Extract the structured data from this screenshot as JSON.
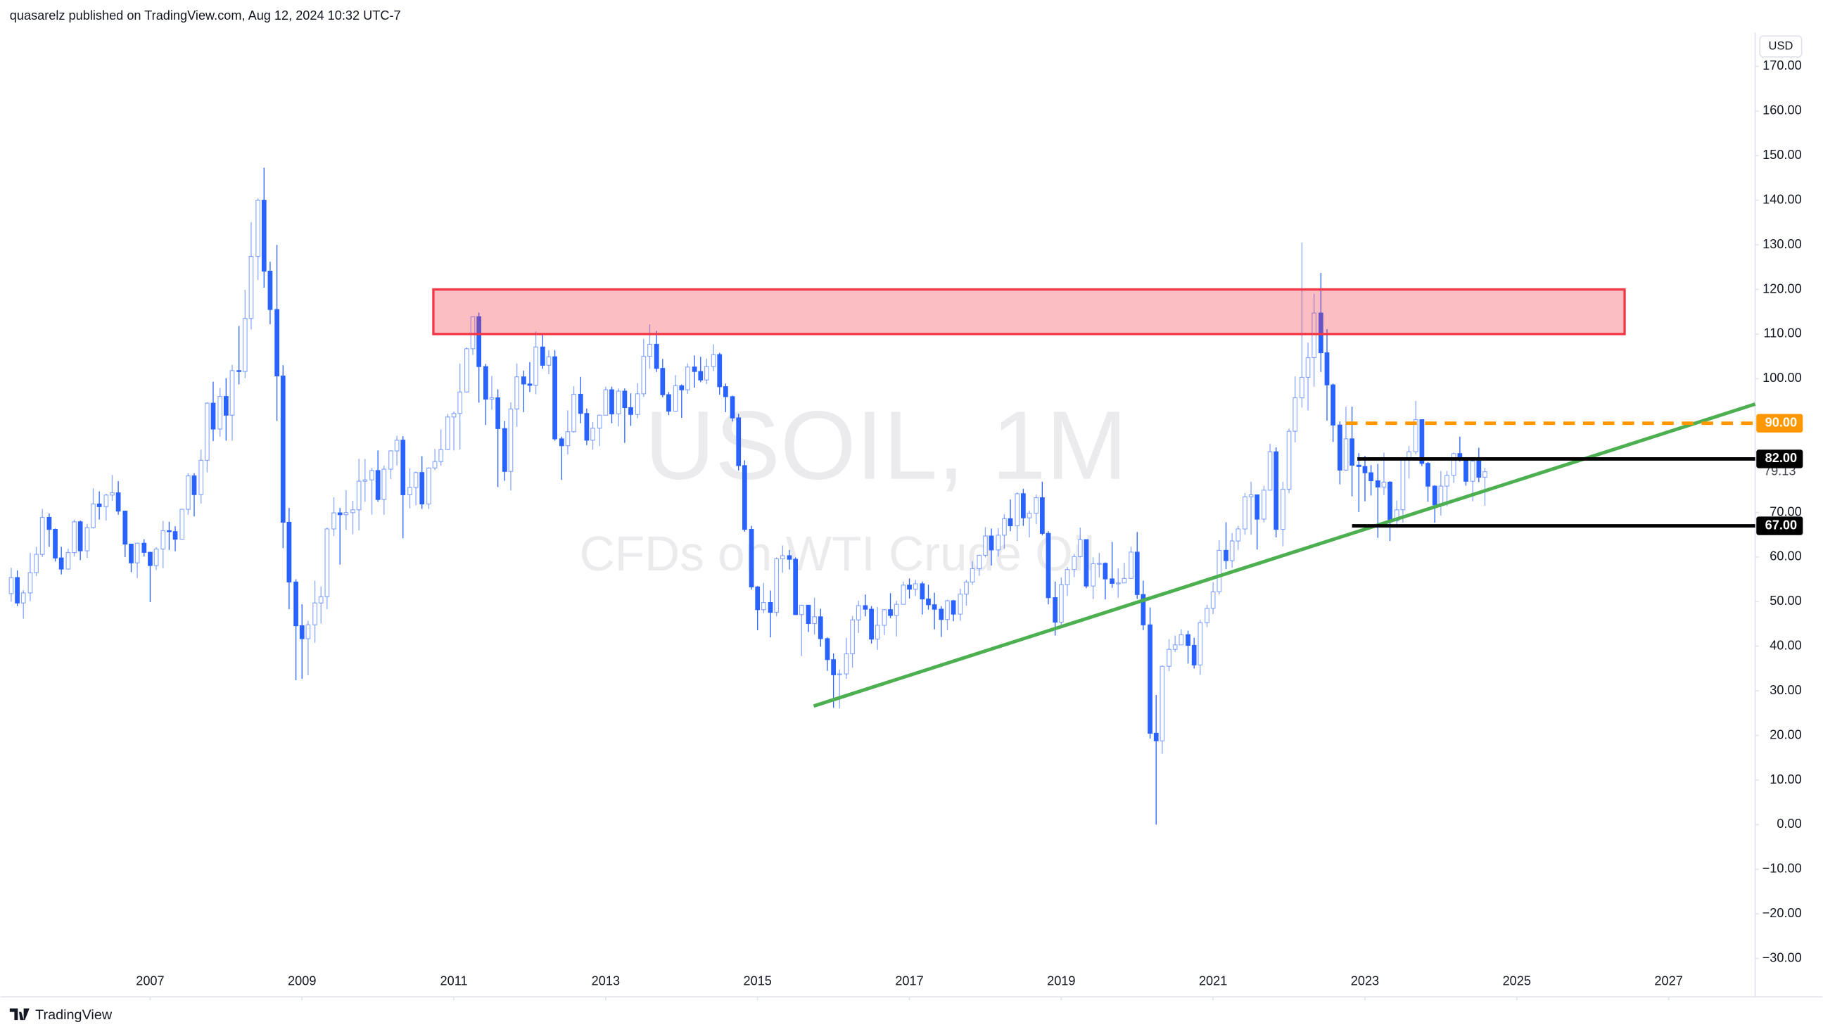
{
  "header": "quasarelz published on TradingView.com, Aug 12, 2024 10:32 UTC-7",
  "footer": "TradingView",
  "chart_data": {
    "type": "candlestick",
    "title": "USOIL, 1M",
    "subtitle": "CFDs on WTI Crude Oil",
    "currency": "USD",
    "x": [
      2005.17,
      2005.25,
      2005.33,
      2005.42,
      2005.5,
      2005.58,
      2005.67,
      2005.75,
      2005.83,
      2005.92,
      2006,
      2006.08,
      2006.17,
      2006.25,
      2006.33,
      2006.42,
      2006.5,
      2006.58,
      2006.67,
      2006.75,
      2006.83,
      2006.92,
      2007,
      2007.08,
      2007.17,
      2007.25,
      2007.33,
      2007.42,
      2007.5,
      2007.58,
      2007.67,
      2007.75,
      2007.83,
      2007.92,
      2008,
      2008.08,
      2008.17,
      2008.25,
      2008.33,
      2008.42,
      2008.5,
      2008.58,
      2008.67,
      2008.75,
      2008.83,
      2008.92,
      2009,
      2009.08,
      2009.17,
      2009.25,
      2009.33,
      2009.42,
      2009.5,
      2009.58,
      2009.67,
      2009.75,
      2009.83,
      2009.92,
      2010,
      2010.08,
      2010.17,
      2010.25,
      2010.33,
      2010.42,
      2010.5,
      2010.58,
      2010.67,
      2010.75,
      2010.83,
      2010.92,
      2011,
      2011.08,
      2011.17,
      2011.25,
      2011.33,
      2011.42,
      2011.5,
      2011.58,
      2011.67,
      2011.75,
      2011.83,
      2011.92,
      2012,
      2012.08,
      2012.17,
      2012.25,
      2012.33,
      2012.42,
      2012.5,
      2012.58,
      2012.67,
      2012.75,
      2012.83,
      2012.92,
      2013,
      2013.08,
      2013.17,
      2013.25,
      2013.33,
      2013.42,
      2013.5,
      2013.58,
      2013.67,
      2013.75,
      2013.83,
      2013.92,
      2014,
      2014.08,
      2014.17,
      2014.25,
      2014.33,
      2014.42,
      2014.5,
      2014.58,
      2014.67,
      2014.75,
      2014.83,
      2014.92,
      2015,
      2015.08,
      2015.17,
      2015.25,
      2015.33,
      2015.42,
      2015.5,
      2015.58,
      2015.67,
      2015.75,
      2015.83,
      2015.92,
      2016,
      2016.08,
      2016.17,
      2016.25,
      2016.33,
      2016.42,
      2016.5,
      2016.58,
      2016.67,
      2016.75,
      2016.83,
      2016.92,
      2017,
      2017.08,
      2017.17,
      2017.25,
      2017.33,
      2017.42,
      2017.5,
      2017.58,
      2017.67,
      2017.75,
      2017.83,
      2017.92,
      2018,
      2018.08,
      2018.17,
      2018.25,
      2018.33,
      2018.42,
      2018.5,
      2018.58,
      2018.67,
      2018.75,
      2018.83,
      2018.92,
      2019,
      2019.08,
      2019.17,
      2019.25,
      2019.33,
      2019.42,
      2019.5,
      2019.58,
      2019.67,
      2019.75,
      2019.83,
      2019.92,
      2020,
      2020.08,
      2020.17,
      2020.25,
      2020.33,
      2020.42,
      2020.5,
      2020.58,
      2020.67,
      2020.75,
      2020.83,
      2020.92,
      2021,
      2021.08,
      2021.17,
      2021.25,
      2021.33,
      2021.42,
      2021.5,
      2021.58,
      2021.67,
      2021.75,
      2021.83,
      2021.92,
      2022,
      2022.08,
      2022.17,
      2022.25,
      2022.33,
      2022.42,
      2022.5,
      2022.58,
      2022.67,
      2022.75,
      2022.83,
      2022.92,
      2023,
      2023.08,
      2023.17,
      2023.25,
      2023.33,
      2023.42,
      2023.5,
      2023.58,
      2023.67,
      2023.75,
      2023.83,
      2023.92,
      2024,
      2024.08,
      2024.17,
      2024.25,
      2024.33,
      2024.42,
      2024.5,
      2024.58
    ],
    "open": [
      51.8,
      55.4,
      49.7,
      51.97,
      56.5,
      60.6,
      68.9,
      66.2,
      59.8,
      57.3,
      61.0,
      67.9,
      61.4,
      66.6,
      71.9,
      71.3,
      73.9,
      74.4,
      70.3,
      62.9,
      58.7,
      63.1,
      61.05,
      58.1,
      61.8,
      65.9,
      65.7,
      64.0,
      70.7,
      78.2,
      74.0,
      81.7,
      94.5,
      88.7,
      96.0,
      91.8,
      101.8,
      101.6,
      113.5,
      127.4,
      140.0,
      124.1,
      115.5,
      100.6,
      67.8,
      54.4,
      44.6,
      41.7,
      44.8,
      49.7,
      51.1,
      66.3,
      69.9,
      69.5,
      69.96,
      70.6,
      77.0,
      77.3,
      79.4,
      72.9,
      79.7,
      83.8,
      86.2,
      73.97,
      75.6,
      78.95,
      71.9,
      79.97,
      81.4,
      84.1,
      91.4,
      92.2,
      97.0,
      106.7,
      113.9,
      102.7,
      95.4,
      95.7,
      88.8,
      79.2,
      93.2,
      100.4,
      98.8,
      98.5,
      107.1,
      103.0,
      104.9,
      86.5,
      84.96,
      88.1,
      96.5,
      92.2,
      86.2,
      88.9,
      91.8,
      97.5,
      92.1,
      97.2,
      93.5,
      91.97,
      96.6,
      105.0,
      107.7,
      102.3,
      96.4,
      92.7,
      98.4,
      97.5,
      102.6,
      101.6,
      99.7,
      102.7,
      105.4,
      98.2,
      95.96,
      91.2,
      80.5,
      66.2,
      53.3,
      48.2,
      49.8,
      47.6,
      59.6,
      60.3,
      59.5,
      47.1,
      49.2,
      45.1,
      46.6,
      41.7,
      37.0,
      33.6,
      33.8,
      38.3,
      45.9,
      49.1,
      48.3,
      41.6,
      44.7,
      48.2,
      46.9,
      49.4,
      53.7,
      52.8,
      54.0,
      50.6,
      49.3,
      48.3,
      46.0,
      50.2,
      47.2,
      51.7,
      54.4,
      57.4,
      60.4,
      64.7,
      61.6,
      64.9,
      68.6,
      67.0,
      74.2,
      68.8,
      69.8,
      73.3,
      65.3,
      50.9,
      45.4,
      53.8,
      57.2,
      60.1,
      63.9,
      53.5,
      58.5,
      58.6,
      55.1,
      54.1,
      54.2,
      55.2,
      61.1,
      51.6,
      44.8,
      20.5,
      18.8,
      35.5,
      39.3,
      40.3,
      42.6,
      40.2,
      35.8,
      45.3,
      48.5,
      52.2,
      61.5,
      59.2,
      63.6,
      66.3,
      73.5,
      73.95,
      68.5,
      75.0,
      83.6,
      66.2,
      75.2,
      88.2,
      95.7,
      100.3,
      104.7,
      114.7,
      105.8,
      98.6,
      89.6,
      79.5,
      86.5,
      80.6,
      80.3,
      78.9,
      77.1,
      75.7,
      76.8,
      68.1,
      70.6,
      81.8,
      83.6,
      90.8,
      81.0,
      75.9,
      71.7,
      75.9,
      78.3,
      83.2,
      81.9,
      76.99,
      81.5,
      77.9
    ],
    "high": [
      57.6,
      57.0,
      52.6,
      60.9,
      62.3,
      70.8,
      69.8,
      66.4,
      62.3,
      61.9,
      68.4,
      68.2,
      67.4,
      75.4,
      74.7,
      74.2,
      78.4,
      77.0,
      70.4,
      63.0,
      63.2,
      64.0,
      61.2,
      62.2,
      68.1,
      67.9,
      66.9,
      70.8,
      78.8,
      78.8,
      84.1,
      94.7,
      99.3,
      97.9,
      100.1,
      103.1,
      111.8,
      119.9,
      135.1,
      140.4,
      147.3,
      126.2,
      130.0,
      103.0,
      71.0,
      55.0,
      49.4,
      45.7,
      54.7,
      53.4,
      66.6,
      73.4,
      71.0,
      75.0,
      72.6,
      82.0,
      82.0,
      80.0,
      83.9,
      80.5,
      83.9,
      87.2,
      87.1,
      79.9,
      79.2,
      82.6,
      80.1,
      84.2,
      88.6,
      92.1,
      92.6,
      103.4,
      107.0,
      114.0,
      114.8,
      103.3,
      100.6,
      97.6,
      90.5,
      94.7,
      103.4,
      101.8,
      103.7,
      110.6,
      110.0,
      106.4,
      106.4,
      87.0,
      92.9,
      98.3,
      100.4,
      93.3,
      90.3,
      91.9,
      98.2,
      98.2,
      97.8,
      97.8,
      96.7,
      99.0,
      108.9,
      112.2,
      110.7,
      104.4,
      97.0,
      100.8,
      98.7,
      103.4,
      105.2,
      104.9,
      104.5,
      107.7,
      105.8,
      98.9,
      96.2,
      92.1,
      81.7,
      67.0,
      53.5,
      54.2,
      52.5,
      59.9,
      62.6,
      61.6,
      59.9,
      49.3,
      49.2,
      50.9,
      48.4,
      42.0,
      38.4,
      34.8,
      41.9,
      46.8,
      50.2,
      51.6,
      49.0,
      48.8,
      48.3,
      51.9,
      50.2,
      54.5,
      55.2,
      54.9,
      54.5,
      53.8,
      52.0,
      49.0,
      50.4,
      50.4,
      52.9,
      54.9,
      59.1,
      60.5,
      66.7,
      66.4,
      66.5,
      69.6,
      72.9,
      74.5,
      75.3,
      70.4,
      74.0,
      76.9,
      65.8,
      54.5,
      55.4,
      57.8,
      60.7,
      66.6,
      63.9,
      59.9,
      60.9,
      58.8,
      63.4,
      57.5,
      58.7,
      62.3,
      65.6,
      54.7,
      48.7,
      29.1,
      35.7,
      41.6,
      42.4,
      43.8,
      43.5,
      41.9,
      45.9,
      49.3,
      54.4,
      63.8,
      67.8,
      65.4,
      67.0,
      74.4,
      76.9,
      74.0,
      76.0,
      85.4,
      84.6,
      76.9,
      88.8,
      100.5,
      130.5,
      108.1,
      119.1,
      123.7,
      111.1,
      98.9,
      90.4,
      93.7,
      93.7,
      83.3,
      82.7,
      80.6,
      80.9,
      83.4,
      77.0,
      72.7,
      82.0,
      84.9,
      95.0,
      90.8,
      81.3,
      76.1,
      79.3,
      79.3,
      83.4,
      87.0,
      82.0,
      82.2,
      84.5,
      80.0
    ],
    "low": [
      50.0,
      49.0,
      46.2,
      50.1,
      55.7,
      60.0,
      62.3,
      59.0,
      56.1,
      57.2,
      60.1,
      59.3,
      59.8,
      66.4,
      68.4,
      68.2,
      72.6,
      69.5,
      60.0,
      56.6,
      55.3,
      60.1,
      49.9,
      57.1,
      57.5,
      61.6,
      61.3,
      64.0,
      69.5,
      69.1,
      72.0,
      79.0,
      86.0,
      87.0,
      86.1,
      86.1,
      98.7,
      100.1,
      111.0,
      122.1,
      120.4,
      112.2,
      90.5,
      62.0,
      48.3,
      32.4,
      32.7,
      33.5,
      40.8,
      45.1,
      48.3,
      64.7,
      58.3,
      66.1,
      65.1,
      66.0,
      72.4,
      69.5,
      72.4,
      69.5,
      77.5,
      80.5,
      64.2,
      70.9,
      71.6,
      70.8,
      70.8,
      79.5,
      80.5,
      84.0,
      83.9,
      84.1,
      96.9,
      105.3,
      94.6,
      89.6,
      93.0,
      75.7,
      77.1,
      74.9,
      89.2,
      92.5,
      97.0,
      96.5,
      102.2,
      101.0,
      86.1,
      77.3,
      83.0,
      87.9,
      90.0,
      85.1,
      84.1,
      84.9,
      91.8,
      90.0,
      89.3,
      85.6,
      89.4,
      91.1,
      95.9,
      102.2,
      101.5,
      95.8,
      91.8,
      92.6,
      91.2,
      96.6,
      98.0,
      99.2,
      98.8,
      101.7,
      96.4,
      92.5,
      90.4,
      79.4,
      65.7,
      52.7,
      43.6,
      47.4,
      42.0,
      46.7,
      56.5,
      57.2,
      47.0,
      37.8,
      43.2,
      42.6,
      39.9,
      34.5,
      26.2,
      26.1,
      32.7,
      35.2,
      43.0,
      46.7,
      40.6,
      39.2,
      42.5,
      46.3,
      42.2,
      49.4,
      50.7,
      51.3,
      47.1,
      48.2,
      43.8,
      42.1,
      43.6,
      45.6,
      45.7,
      49.1,
      53.8,
      55.8,
      59.9,
      58.1,
      60.1,
      61.8,
      65.8,
      63.6,
      67.0,
      64.4,
      67.4,
      64.9,
      49.4,
      42.4,
      44.3,
      51.3,
      55.5,
      59.9,
      53.0,
      50.6,
      55.4,
      50.5,
      53.1,
      50.9,
      54.2,
      55.2,
      50.6,
      43.6,
      19.3,
      0,
      15.9,
      34.4,
      38.7,
      40.3,
      36.1,
      35.0,
      33.6,
      44.3,
      47.2,
      51.6,
      57.3,
      57.6,
      61.6,
      65.0,
      65.0,
      61.7,
      67.8,
      74.9,
      64.4,
      62.4,
      74.3,
      85.7,
      93.5,
      92.9,
      98.2,
      101.5,
      90.6,
      85.8,
      76.3,
      79.3,
      73.6,
      70.1,
      72.5,
      73.8,
      64.3,
      73.9,
      63.6,
      66.9,
      67.7,
      77.6,
      83.0,
      80.4,
      72.4,
      67.7,
      69.3,
      71.4,
      76.6,
      81.4,
      76.0,
      72.5,
      76.8,
      71.5
    ],
    "close": [
      55.4,
      49.7,
      51.97,
      56.5,
      60.6,
      68.9,
      66.2,
      59.8,
      57.3,
      61.0,
      67.9,
      61.4,
      66.6,
      71.9,
      71.3,
      73.9,
      74.4,
      70.3,
      62.9,
      58.7,
      63.1,
      61.05,
      58.1,
      61.8,
      65.9,
      65.7,
      64.0,
      70.7,
      78.2,
      74.0,
      81.7,
      94.5,
      88.7,
      96.0,
      91.8,
      101.8,
      101.6,
      113.5,
      127.4,
      140.0,
      124.1,
      115.5,
      100.6,
      67.8,
      54.4,
      44.6,
      41.7,
      44.8,
      49.7,
      51.1,
      66.3,
      69.9,
      69.5,
      69.96,
      70.6,
      77.0,
      77.3,
      79.4,
      72.9,
      79.7,
      83.8,
      86.2,
      73.97,
      75.6,
      78.95,
      71.9,
      79.97,
      81.4,
      84.1,
      91.4,
      92.2,
      97.0,
      106.7,
      113.9,
      102.7,
      95.4,
      95.7,
      88.8,
      79.2,
      93.2,
      100.4,
      98.8,
      98.5,
      107.1,
      103.0,
      104.9,
      86.5,
      84.96,
      88.1,
      96.5,
      92.2,
      86.2,
      88.9,
      91.8,
      97.5,
      92.1,
      97.2,
      93.5,
      91.97,
      96.6,
      105.0,
      107.7,
      102.3,
      96.4,
      92.7,
      98.4,
      97.5,
      102.6,
      101.6,
      99.7,
      102.7,
      105.4,
      98.2,
      95.96,
      91.2,
      80.5,
      66.2,
      53.3,
      48.2,
      49.8,
      47.6,
      59.6,
      60.3,
      59.5,
      47.1,
      49.2,
      45.1,
      46.6,
      41.7,
      37.0,
      33.6,
      33.8,
      38.3,
      45.9,
      49.1,
      48.3,
      41.6,
      44.7,
      48.2,
      46.9,
      49.4,
      53.7,
      52.8,
      54.0,
      50.6,
      49.3,
      48.3,
      46.0,
      50.2,
      47.2,
      51.7,
      54.4,
      57.4,
      60.4,
      64.7,
      61.6,
      64.9,
      68.6,
      67.0,
      74.2,
      68.8,
      69.8,
      73.3,
      65.3,
      50.9,
      45.4,
      53.8,
      57.2,
      60.1,
      63.9,
      53.5,
      58.5,
      58.6,
      55.1,
      54.1,
      54.2,
      55.2,
      61.1,
      51.6,
      44.8,
      20.5,
      18.8,
      35.5,
      39.3,
      40.3,
      42.6,
      40.2,
      35.8,
      45.3,
      48.5,
      52.2,
      61.5,
      59.2,
      63.6,
      66.3,
      73.5,
      73.95,
      68.5,
      75.0,
      83.6,
      66.2,
      75.2,
      88.2,
      95.7,
      100.3,
      104.7,
      114.7,
      105.8,
      98.6,
      89.6,
      79.5,
      86.5,
      80.6,
      80.3,
      78.9,
      77.1,
      75.7,
      76.8,
      68.1,
      70.6,
      81.8,
      83.6,
      90.8,
      81.0,
      75.9,
      71.7,
      75.9,
      78.3,
      83.2,
      81.9,
      76.99,
      81.5,
      77.9,
      79.13
    ],
    "up_color": "#ffffff",
    "down_color": "#2962ff",
    "line_color": "#2962ff",
    "xlim": [
      2005.15,
      2028.14
    ],
    "xticks": [
      2007,
      2009,
      2011,
      2013,
      2015,
      2017,
      2019,
      2021,
      2023,
      2025,
      2027
    ],
    "ylim": [
      -38.6,
      177.6
    ],
    "yticks": [
      {
        "value": 170,
        "label": "170.00"
      },
      {
        "value": 160,
        "label": "160.00"
      },
      {
        "value": 150,
        "label": "150.00"
      },
      {
        "value": 140,
        "label": "140.00"
      },
      {
        "value": 130,
        "label": "130.00"
      },
      {
        "value": 120,
        "label": "120.00"
      },
      {
        "value": 110,
        "label": "110.00"
      },
      {
        "value": 100,
        "label": "100.00"
      },
      {
        "value": 90,
        "label": "90.00"
      },
      {
        "value": 80,
        "label": "80.00"
      },
      {
        "value": 70,
        "label": "70.00"
      },
      {
        "value": 60,
        "label": "60.00"
      },
      {
        "value": 50,
        "label": "50.00"
      },
      {
        "value": 40,
        "label": "40.00"
      },
      {
        "value": 30,
        "label": "30.00"
      },
      {
        "value": 20,
        "label": "20.00"
      },
      {
        "value": 10,
        "label": "10.00"
      },
      {
        "value": 0,
        "label": "0.00"
      },
      {
        "value": -10,
        "label": "−10.00"
      },
      {
        "value": -20,
        "label": "−20.00"
      },
      {
        "value": -30,
        "label": "−30.00"
      }
    ],
    "grid": false,
    "last_price": {
      "value": 79.13,
      "label": "79.13"
    },
    "annotations": {
      "zone": {
        "x": [
          2010.73,
          2026.42
        ],
        "y": [
          110,
          120
        ],
        "color": "#f23645"
      },
      "trendline": {
        "x": [
          2015.74,
          2028.14
        ],
        "y": [
          26.6,
          94.3
        ],
        "color": "#4caf50"
      },
      "levels": [
        {
          "value": 90,
          "label": "90.00",
          "x": 2022.75,
          "color": "#ff9800",
          "dashed": true
        },
        {
          "value": 82,
          "label": "82.00",
          "x": 2022.9,
          "color": "#000000",
          "dashed": false
        },
        {
          "value": 67,
          "label": "67.00",
          "x": 2022.83,
          "color": "#000000",
          "dashed": false
        }
      ]
    }
  }
}
